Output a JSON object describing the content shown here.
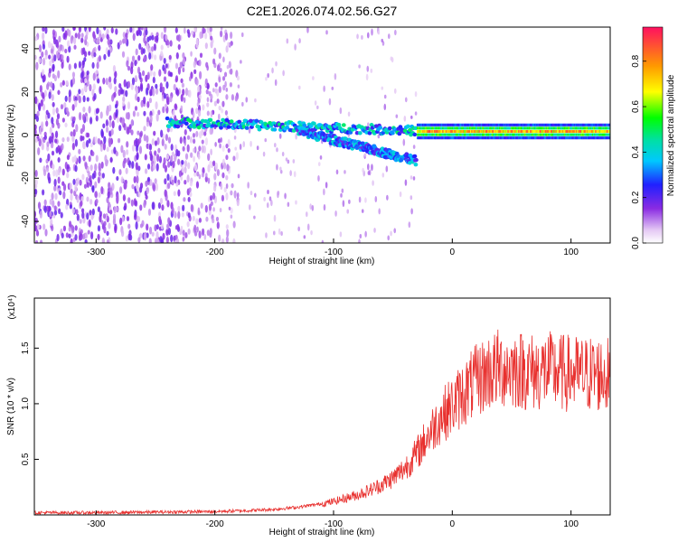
{
  "title": "C2E1.2026.074.02.56.G27",
  "chart_data": [
    {
      "type": "heatmap",
      "xlabel": "Height of straight line (km)",
      "ylabel": "Frequency (Hz)",
      "xlim": [
        -352,
        133
      ],
      "ylim": [
        -50,
        50
      ],
      "x_ticks": [
        -300,
        -200,
        -100,
        0,
        100
      ],
      "y_ticks": [
        -40,
        -20,
        0,
        20,
        40
      ],
      "colorbar": {
        "label": "Normalized spectral amplitude",
        "range": [
          0,
          0.95
        ],
        "ticks": [
          0.0,
          0.2,
          0.4,
          0.6,
          0.8
        ]
      },
      "features": [
        {
          "x_range": [
            -352,
            -220
          ],
          "y_range": [
            -50,
            50
          ],
          "level": 0.12
        },
        {
          "x_range": [
            -240,
            -30
          ],
          "f_start": 6,
          "f_end": 2,
          "level": 0.35
        },
        {
          "x_range": [
            -130,
            -30
          ],
          "f_start": 2,
          "f_end": -12,
          "level": 0.3
        },
        {
          "x_range": [
            -30,
            133
          ],
          "f_center": 1.5,
          "level": 0.85
        }
      ]
    },
    {
      "type": "line",
      "xlabel": "Height of straight line (km)",
      "ylabel": "SNR (10 * v/v)",
      "y_multiplier_label": "(x10⁴)",
      "xlim": [
        -352,
        133
      ],
      "ylim": [
        0,
        1.95
      ],
      "x_ticks": [
        -300,
        -200,
        -100,
        0,
        100
      ],
      "y_ticks": [
        0.5,
        1.0,
        1.5
      ],
      "color": "#e8302e",
      "series": [
        {
          "x": [
            -352,
            -300,
            -250,
            -200,
            -170,
            -150,
            -130,
            -110,
            -100,
            -90,
            -80,
            -70,
            -60,
            -50,
            -40,
            -30,
            -20,
            -10,
            0,
            10,
            20,
            30,
            40,
            50,
            60,
            70,
            80,
            90,
            100,
            110,
            120,
            133
          ],
          "values": [
            0.02,
            0.02,
            0.025,
            0.03,
            0.04,
            0.05,
            0.07,
            0.1,
            0.12,
            0.15,
            0.18,
            0.22,
            0.27,
            0.33,
            0.42,
            0.55,
            0.72,
            0.88,
            0.98,
            1.1,
            1.2,
            1.28,
            1.32,
            1.32,
            1.3,
            1.28,
            1.3,
            1.28,
            1.27,
            1.26,
            1.27,
            1.25
          ]
        }
      ]
    }
  ]
}
